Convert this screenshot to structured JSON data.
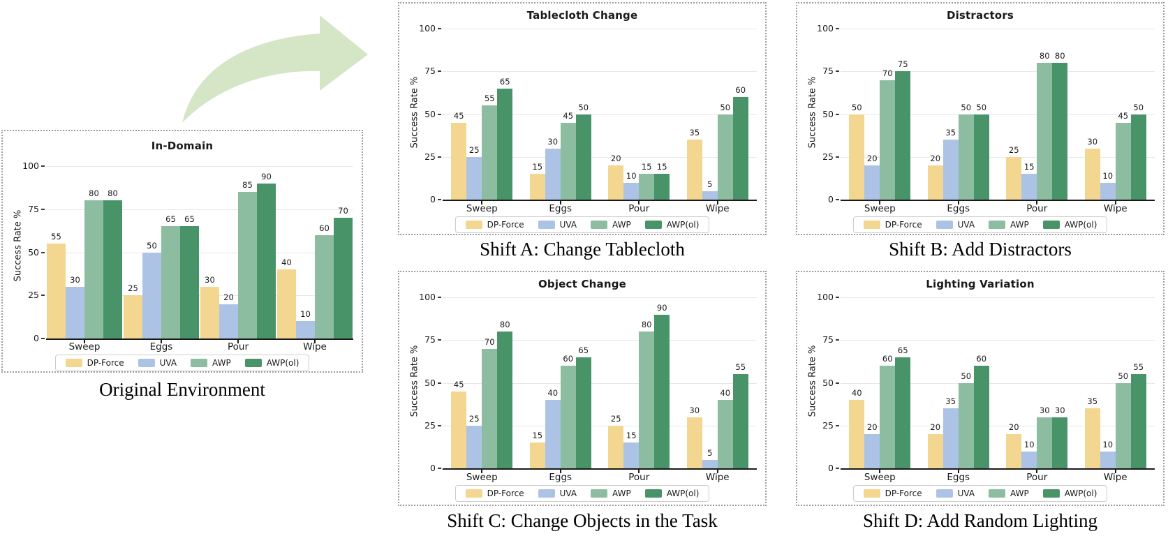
{
  "figure": {
    "background": "#ffffff",
    "arrow_color": "#d4e6c6",
    "axis_color": "#1a1a1a",
    "grid_color": "#e8e8e8"
  },
  "legend": {
    "labels": [
      "DP-Force",
      "UVA",
      "AWP",
      "AWP(ol)"
    ],
    "colors": [
      "#f3d68f",
      "#adc3e6",
      "#8dbda0",
      "#489468"
    ]
  },
  "chart_data": [
    {
      "type": "bar",
      "title": "In-Domain",
      "caption": "Original Environment",
      "ylabel": "Success Rate %",
      "ylim": [
        0,
        100
      ],
      "yticks": [
        0,
        25,
        50,
        75,
        100
      ],
      "grid": true,
      "legend_position": "bottom",
      "categories": [
        "Sweep",
        "Eggs",
        "Pour",
        "Wipe"
      ],
      "series": [
        {
          "name": "DP-Force",
          "values": [
            55,
            25,
            30,
            40
          ]
        },
        {
          "name": "UVA",
          "values": [
            30,
            50,
            20,
            10
          ]
        },
        {
          "name": "AWP",
          "values": [
            80,
            65,
            85,
            60
          ]
        },
        {
          "name": "AWP(ol)",
          "values": [
            80,
            65,
            90,
            70
          ]
        }
      ]
    },
    {
      "type": "bar",
      "title": "Tablecloth Change",
      "caption": "Shift A: Change Tablecloth",
      "ylabel": "Success Rate %",
      "ylim": [
        0,
        100
      ],
      "yticks": [
        0,
        25,
        50,
        75,
        100
      ],
      "grid": true,
      "legend_position": "bottom",
      "categories": [
        "Sweep",
        "Eggs",
        "Pour",
        "Wipe"
      ],
      "series": [
        {
          "name": "DP-Force",
          "values": [
            45,
            15,
            20,
            35
          ]
        },
        {
          "name": "UVA",
          "values": [
            25,
            30,
            10,
            5
          ]
        },
        {
          "name": "AWP",
          "values": [
            55,
            45,
            15,
            50
          ]
        },
        {
          "name": "AWP(ol)",
          "values": [
            65,
            50,
            15,
            60
          ]
        }
      ]
    },
    {
      "type": "bar",
      "title": "Distractors",
      "caption": "Shift B: Add Distractors",
      "ylabel": "Success Rate %",
      "ylim": [
        0,
        100
      ],
      "yticks": [
        0,
        25,
        50,
        75,
        100
      ],
      "grid": true,
      "legend_position": "bottom",
      "categories": [
        "Sweep",
        "Eggs",
        "Pour",
        "Wipe"
      ],
      "series": [
        {
          "name": "DP-Force",
          "values": [
            50,
            20,
            25,
            30
          ]
        },
        {
          "name": "UVA",
          "values": [
            20,
            35,
            15,
            10
          ]
        },
        {
          "name": "AWP",
          "values": [
            70,
            50,
            80,
            45
          ]
        },
        {
          "name": "AWP(ol)",
          "values": [
            75,
            50,
            80,
            50
          ]
        }
      ]
    },
    {
      "type": "bar",
      "title": "Object Change",
      "caption": "Shift C: Change Objects in the Task",
      "ylabel": "Success Rate %",
      "ylim": [
        0,
        100
      ],
      "yticks": [
        0,
        25,
        50,
        75,
        100
      ],
      "grid": true,
      "legend_position": "bottom",
      "categories": [
        "Sweep",
        "Eggs",
        "Pour",
        "Wipe"
      ],
      "series": [
        {
          "name": "DP-Force",
          "values": [
            45,
            15,
            25,
            30
          ]
        },
        {
          "name": "UVA",
          "values": [
            25,
            40,
            15,
            5
          ]
        },
        {
          "name": "AWP",
          "values": [
            70,
            60,
            80,
            40
          ]
        },
        {
          "name": "AWP(ol)",
          "values": [
            80,
            65,
            90,
            55
          ]
        }
      ]
    },
    {
      "type": "bar",
      "title": "Lighting Variation",
      "caption": "Shift D: Add Random Lighting",
      "ylabel": "Success Rate %",
      "ylim": [
        0,
        100
      ],
      "yticks": [
        0,
        25,
        50,
        75,
        100
      ],
      "grid": true,
      "legend_position": "bottom",
      "categories": [
        "Sweep",
        "Eggs",
        "Pour",
        "Wipe"
      ],
      "series": [
        {
          "name": "DP-Force",
          "values": [
            40,
            20,
            20,
            35
          ]
        },
        {
          "name": "UVA",
          "values": [
            20,
            35,
            10,
            10
          ]
        },
        {
          "name": "AWP",
          "values": [
            60,
            50,
            30,
            50
          ]
        },
        {
          "name": "AWP(ol)",
          "values": [
            65,
            60,
            30,
            55
          ]
        }
      ]
    }
  ]
}
